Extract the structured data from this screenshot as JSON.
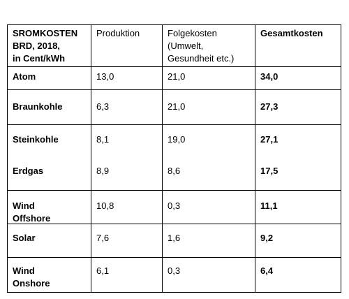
{
  "table": {
    "header": [
      [
        "SROMKOSTEN",
        "BRD, 2018,",
        "in Cent/kWh"
      ],
      [
        "Produktion"
      ],
      [
        "Folgekosten",
        "(Umwelt,",
        "Gesundheit etc.)"
      ],
      [
        "Gesamtkosten"
      ]
    ],
    "rows": [
      [
        [
          "Atom"
        ],
        "13,0",
        "21,0",
        "34,0"
      ],
      [
        [
          "Braunkohle"
        ],
        "6,3",
        "21,0",
        "27,3"
      ],
      [
        [
          "Steinkohle"
        ],
        "8,1",
        "19,0",
        "27,1"
      ],
      [
        [
          "Erdgas"
        ],
        "8,9",
        "8,6",
        "17,5"
      ],
      [
        [
          "Wind",
          "Offshore"
        ],
        "10,8",
        "0,3",
        "11,1"
      ],
      [
        [
          "Solar"
        ],
        "7,6",
        "1,6",
        "9,2"
      ],
      [
        [
          "Wind",
          "Onshore"
        ],
        "6,1",
        "0,3",
        "6,4"
      ]
    ]
  }
}
